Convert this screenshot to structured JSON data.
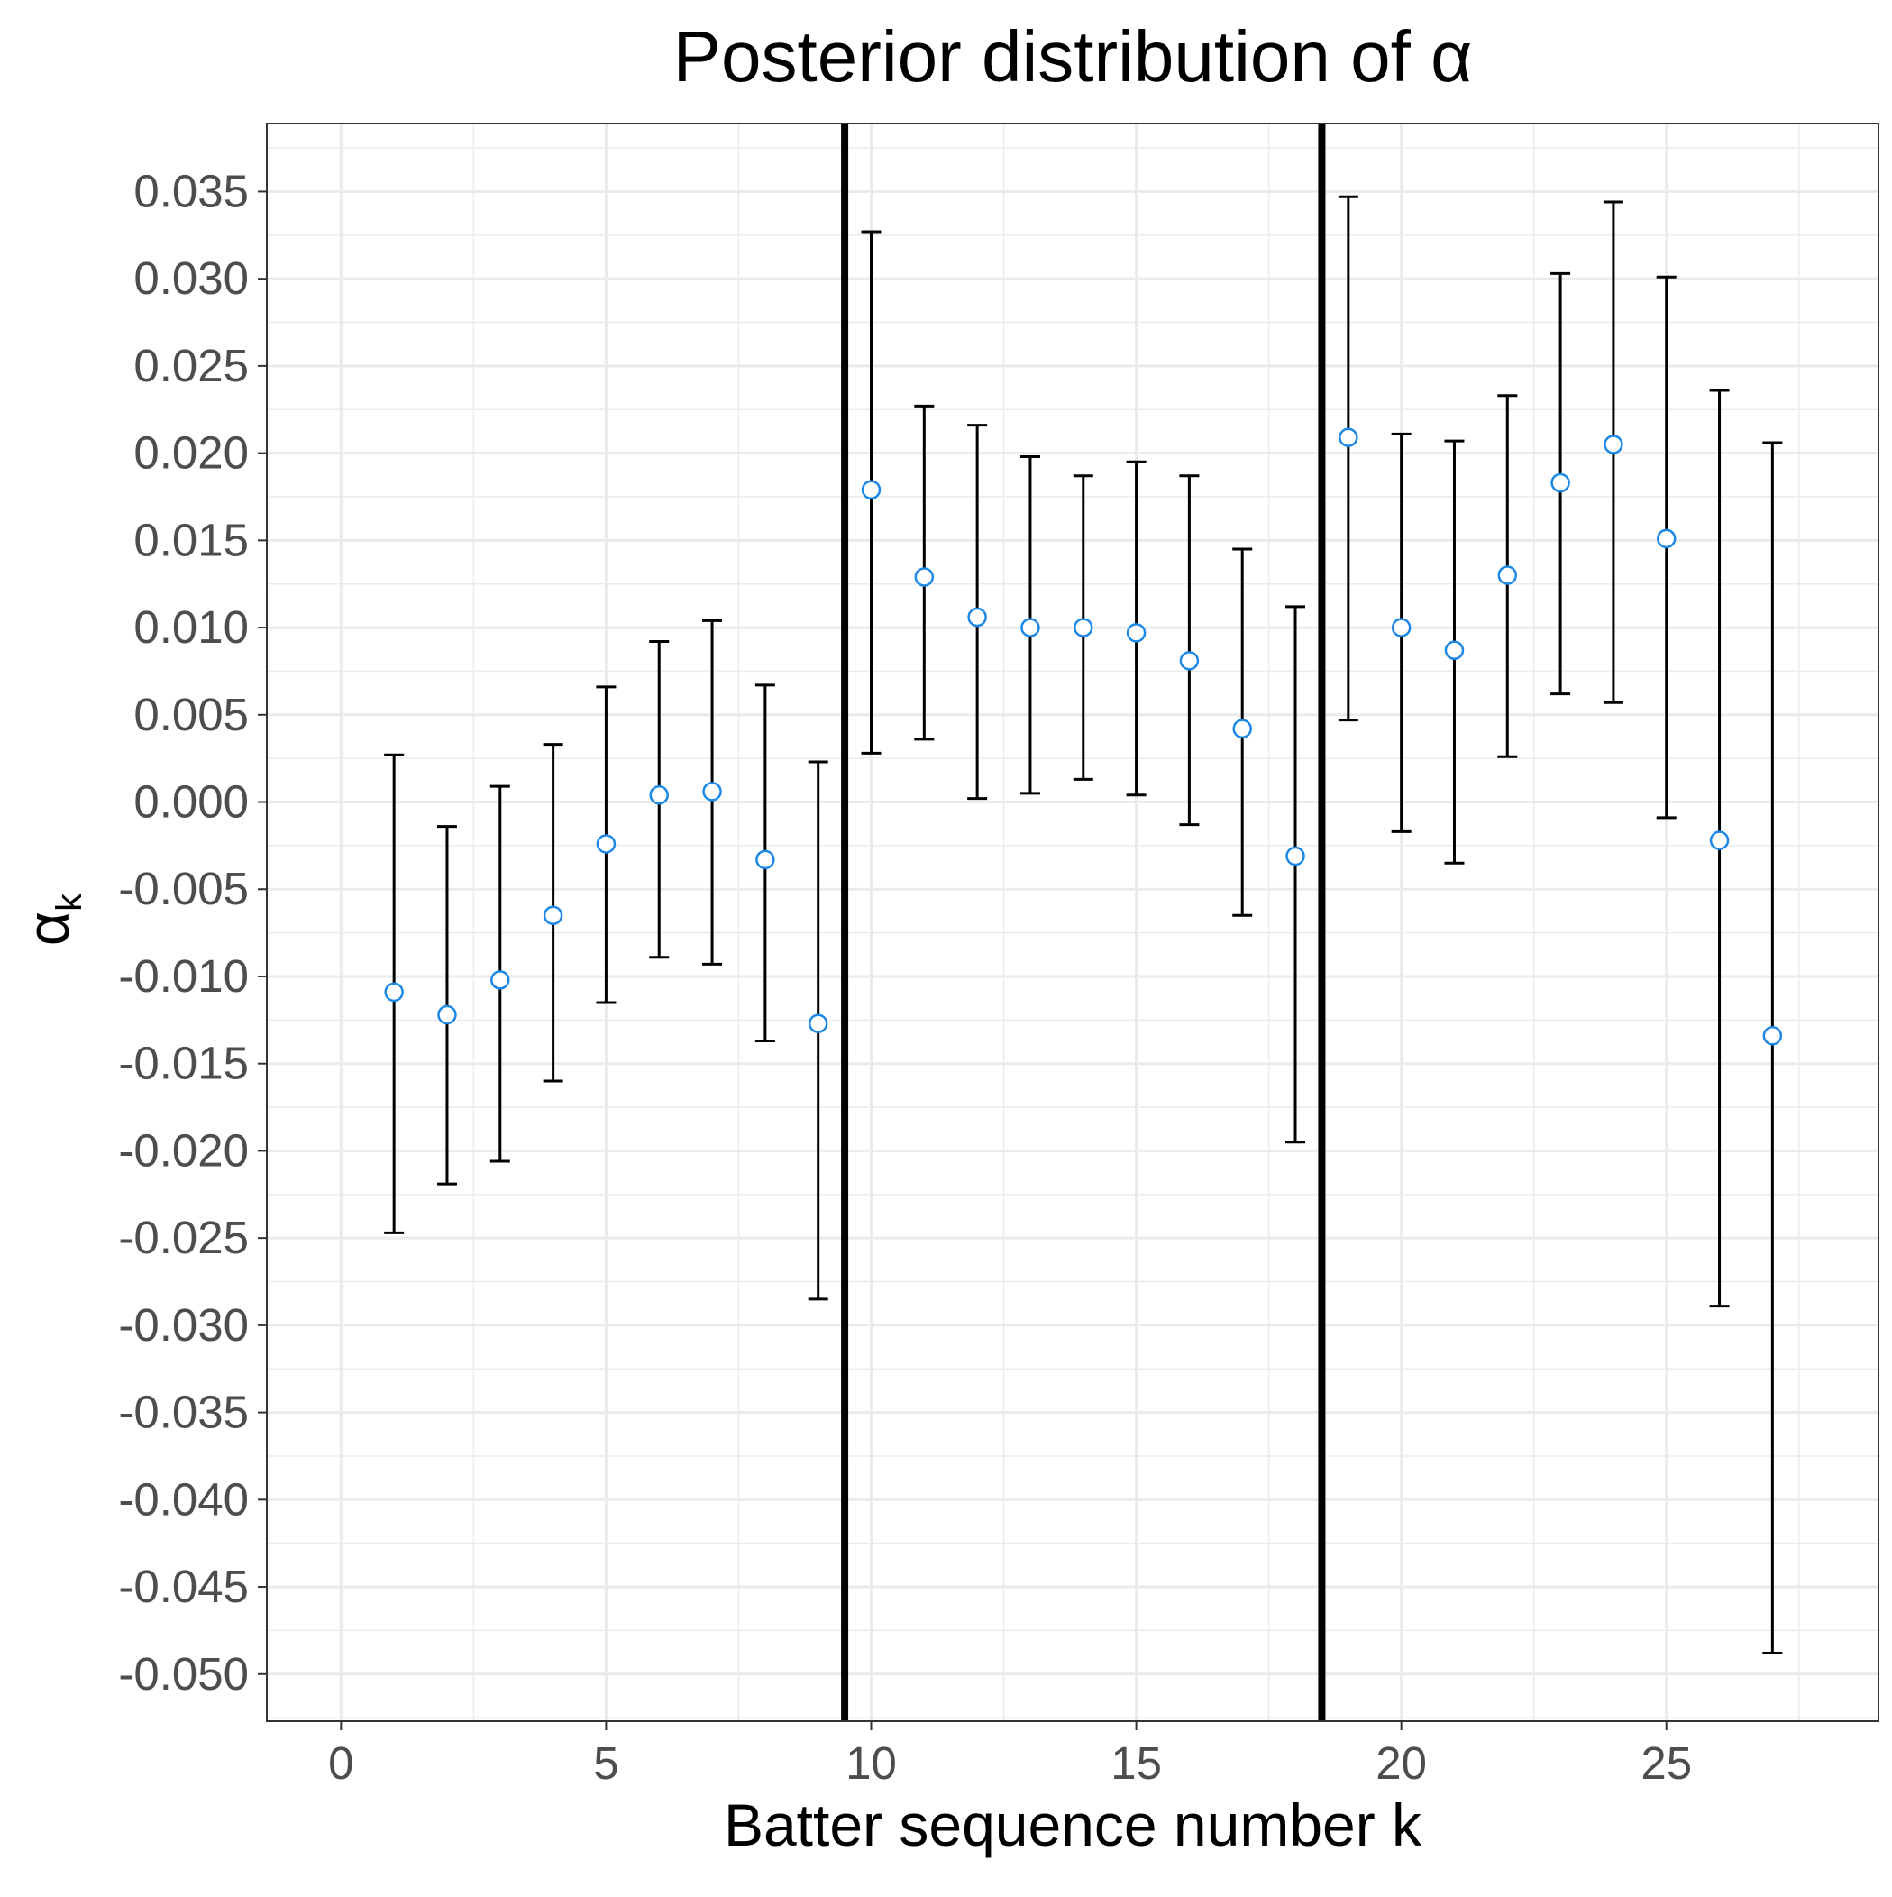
{
  "chart_data": {
    "type": "scatter",
    "title": "Posterior distribution of α",
    "xlabel": "Batter sequence number k",
    "ylabel": "α",
    "ylabel_subscript": "k",
    "xlim": [
      -1.4,
      29.0
    ],
    "ylim": [
      -0.0527,
      0.0389
    ],
    "x_ticks": [
      0,
      5,
      10,
      15,
      20,
      25
    ],
    "x_tick_labels": [
      "0",
      "5",
      "10",
      "15",
      "20",
      "25"
    ],
    "y_ticks": [
      0.035,
      0.03,
      0.025,
      0.02,
      0.015,
      0.01,
      0.005,
      0.0,
      -0.005,
      -0.01,
      -0.015,
      -0.02,
      -0.025,
      -0.03,
      -0.035,
      -0.04,
      -0.045,
      -0.05
    ],
    "y_tick_labels": [
      "0.035",
      "0.030",
      "0.025",
      "0.020",
      "0.015",
      "0.010",
      "0.005",
      "0.000",
      "-0.005",
      "-0.010",
      "-0.015",
      "-0.020",
      "-0.025",
      "-0.030",
      "-0.035",
      "-0.040",
      "-0.045",
      "-0.050"
    ],
    "grid": true,
    "vertical_lines": [
      9.5,
      18.5
    ],
    "colors": {
      "point_stroke": "#1e88e5",
      "point_fill": "#ffffff",
      "errorbar": "#000000",
      "vline": "#000000",
      "grid": "#ebebeb",
      "panel_border": "#333333"
    },
    "points": [
      {
        "x": 1,
        "y": -0.0109,
        "lower": -0.0247,
        "upper": 0.0027
      },
      {
        "x": 2,
        "y": -0.0122,
        "lower": -0.0219,
        "upper": -0.0014
      },
      {
        "x": 3,
        "y": -0.0102,
        "lower": -0.0206,
        "upper": 0.0009
      },
      {
        "x": 4,
        "y": -0.0065,
        "lower": -0.016,
        "upper": 0.0033
      },
      {
        "x": 5,
        "y": -0.0024,
        "lower": -0.0115,
        "upper": 0.0066
      },
      {
        "x": 6,
        "y": 0.0004,
        "lower": -0.0089,
        "upper": 0.0092
      },
      {
        "x": 7,
        "y": 0.0006,
        "lower": -0.0093,
        "upper": 0.0104
      },
      {
        "x": 8,
        "y": -0.0033,
        "lower": -0.0137,
        "upper": 0.0067
      },
      {
        "x": 9,
        "y": -0.0127,
        "lower": -0.0285,
        "upper": 0.0023
      },
      {
        "x": 10,
        "y": 0.0179,
        "lower": 0.0028,
        "upper": 0.0327
      },
      {
        "x": 11,
        "y": 0.0129,
        "lower": 0.0036,
        "upper": 0.0227
      },
      {
        "x": 12,
        "y": 0.0106,
        "lower": 0.0002,
        "upper": 0.0216
      },
      {
        "x": 13,
        "y": 0.01,
        "lower": 0.0005,
        "upper": 0.0198
      },
      {
        "x": 14,
        "y": 0.01,
        "lower": 0.0013,
        "upper": 0.0187
      },
      {
        "x": 15,
        "y": 0.0097,
        "lower": 0.0004,
        "upper": 0.0195
      },
      {
        "x": 16,
        "y": 0.0081,
        "lower": -0.0013,
        "upper": 0.0187
      },
      {
        "x": 17,
        "y": 0.0042,
        "lower": -0.0065,
        "upper": 0.0145
      },
      {
        "x": 18,
        "y": -0.0031,
        "lower": -0.0195,
        "upper": 0.0112
      },
      {
        "x": 19,
        "y": 0.0209,
        "lower": 0.0047,
        "upper": 0.0347
      },
      {
        "x": 20,
        "y": 0.01,
        "lower": -0.0017,
        "upper": 0.0211
      },
      {
        "x": 21,
        "y": 0.0087,
        "lower": -0.0035,
        "upper": 0.0207
      },
      {
        "x": 22,
        "y": 0.013,
        "lower": 0.0026,
        "upper": 0.0233
      },
      {
        "x": 23,
        "y": 0.0183,
        "lower": 0.0062,
        "upper": 0.0303
      },
      {
        "x": 24,
        "y": 0.0205,
        "lower": 0.0057,
        "upper": 0.0344
      },
      {
        "x": 25,
        "y": 0.0151,
        "lower": -0.0009,
        "upper": 0.0301
      },
      {
        "x": 26,
        "y": -0.0022,
        "lower": -0.0289,
        "upper": 0.0236
      },
      {
        "x": 27,
        "y": -0.0134,
        "lower": -0.0488,
        "upper": 0.0206
      }
    ]
  }
}
